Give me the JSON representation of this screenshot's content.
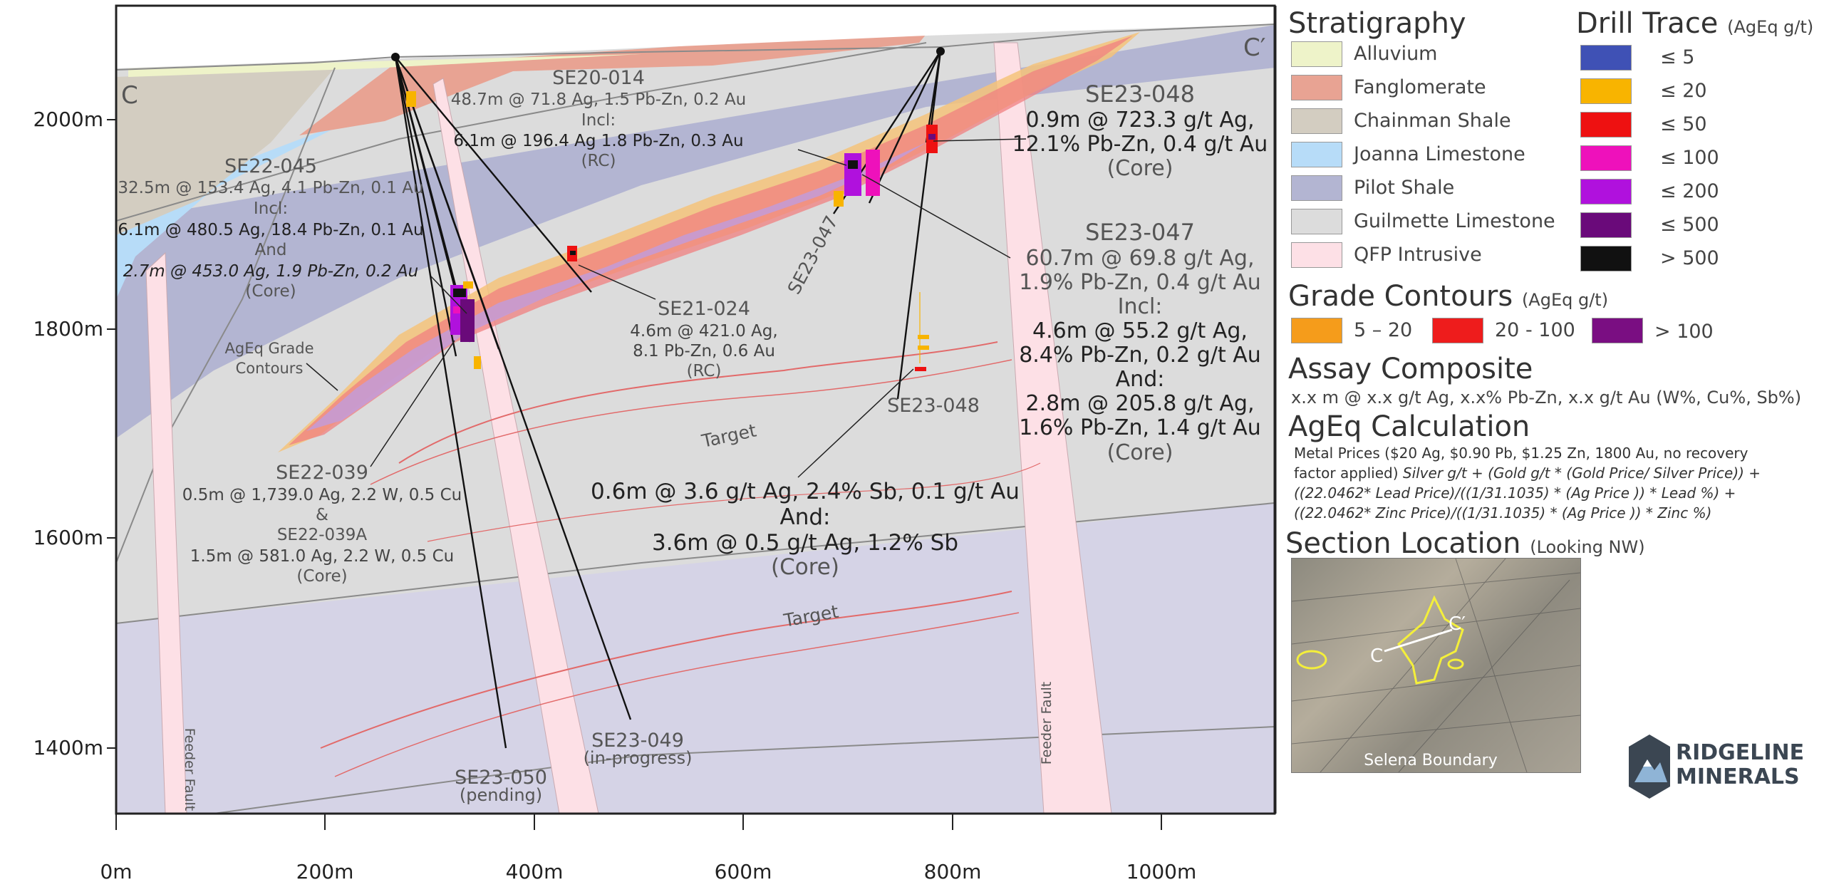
{
  "section": {
    "left_end": "C",
    "right_end": "C′"
  },
  "axes": {
    "y_ticks": [
      "2000m",
      "1800m",
      "1600m",
      "1400m"
    ],
    "x_ticks": [
      "0m",
      "200m",
      "400m",
      "600m",
      "800m",
      "1000m"
    ]
  },
  "holes": {
    "se20_014": {
      "name": "SE20-014",
      "l1": "48.7m @ 71.8 Ag, 1.5 Pb-Zn, 0.2 Au",
      "l2": "Incl:",
      "l3": "6.1m @ 196.4 Ag 1.8 Pb-Zn, 0.3 Au",
      "l4": "(RC)"
    },
    "se22_045": {
      "name": "SE22-045",
      "l1": "32.5m @ 153.4 Ag, 4.1 Pb-Zn, 0.1 Au",
      "l2": "Incl:",
      "l3": "6.1m @ 480.5 Ag, 18.4 Pb-Zn, 0.1 Au",
      "l4": "And",
      "l5": "2.7m @ 453.0 Ag, 1.9 Pb-Zn, 0.2 Au",
      "l6": "(Core)"
    },
    "se21_024": {
      "name": "SE21-024",
      "l1": "4.6m @ 421.0 Ag,",
      "l2": "8.1 Pb-Zn, 0.6 Au",
      "l3": "(RC)"
    },
    "se22_039": {
      "name": "SE22-039",
      "l1": "0.5m @ 1,739.0 Ag, 2.2 W, 0.5 Cu",
      "l2": "&",
      "l3": "SE22-039A",
      "l4": "1.5m @ 581.0 Ag, 2.2 W, 0.5 Cu",
      "l5": "(Core)"
    },
    "se23_048_top": {
      "name": "SE23-048",
      "l1": "0.9m @ 723.3 g/t Ag,",
      "l2": "12.1% Pb-Zn, 0.4 g/t Au",
      "l3": "(Core)"
    },
    "se23_047": {
      "name": "SE23-047",
      "trace_label": "SE23-047",
      "l1": "60.7m @ 69.8 g/t Ag,",
      "l2": "1.9% Pb-Zn, 0.4 g/t Au",
      "l3": "Incl:",
      "l4": "4.6m @ 55.2 g/t Ag,",
      "l5": "8.4% Pb-Zn, 0.2 g/t Au",
      "l6": "And:",
      "l7": "2.8m @ 205.8 g/t Ag,",
      "l8": "1.6% Pb-Zn, 1.4 g/t Au",
      "l9": "(Core)"
    },
    "se23_048_low": {
      "name": "SE23-048",
      "l1": "0.6m @ 3.6 g/t Ag, 2.4% Sb, 0.1 g/t Au",
      "l2": "And:",
      "l3": "3.6m @ 0.5 g/t Ag, 1.2% Sb",
      "l4": "(Core)"
    },
    "se23_049": {
      "name": "SE23-049",
      "status": "(in-progress)"
    },
    "se23_050": {
      "name": "SE23-050",
      "status": "(pending)"
    }
  },
  "annotations": {
    "contours_l1": "AgEq Grade",
    "contours_l2": "Contours",
    "target": "Target",
    "feeder_fault": "Feeder Fault"
  },
  "legend": {
    "stratigraphy_title": "Stratigraphy",
    "stratigraphy": [
      {
        "label": "Alluvium",
        "color": "#eef3c9"
      },
      {
        "label": "Fanglomerate",
        "color": "#e8a393"
      },
      {
        "label": "Chainman Shale",
        "color": "#d3cdc1"
      },
      {
        "label": "Joanna Limestone",
        "color": "#b7dcf8"
      },
      {
        "label": "Pilot Shale",
        "color": "#b3b5d2"
      },
      {
        "label": "Guilmette Limestone",
        "color": "#dcdcdc"
      },
      {
        "label": "QFP Intrusive",
        "color": "#fde0e6"
      }
    ],
    "drill_title": "Drill Trace",
    "drill_unit": "(AgEq g/t)",
    "drill": [
      {
        "label": "≤ 5",
        "color": "#3f51b5"
      },
      {
        "label": "≤ 20",
        "color": "#f8b400"
      },
      {
        "label": "≤ 50",
        "color": "#ee1111"
      },
      {
        "label": "≤ 100",
        "color": "#ee11bb"
      },
      {
        "label": "≤ 200",
        "color": "#b011dd"
      },
      {
        "label": "≤ 500",
        "color": "#6a0a7a"
      },
      {
        "label": "> 500",
        "color": "#111111"
      }
    ],
    "contour_title": "Grade Contours",
    "contour_unit": "(AgEq g/t)",
    "contours": [
      {
        "label": "5 – 20",
        "color": "#f59c1b"
      },
      {
        "label": "20 - 100",
        "color": "#ee1c1c"
      },
      {
        "label": "> 100",
        "color": "#7a0e82"
      }
    ],
    "assay_title": "Assay Composite",
    "assay_text": "x.x m @ x.x g/t Ag, x.x% Pb-Zn, x.x g/t Au (W%, Cu%, Sb%)",
    "ageq_title": "AgEq Calculation",
    "ageq_l1": "Metal Prices ($20 Ag, $0.90 Pb, $1.25 Zn, 1800 Au, no recovery",
    "ageq_l2a": "factor applied) ",
    "ageq_l2b": "Silver g/t + (Gold g/t * (Gold Price/ Silver Price)) +",
    "ageq_l3": "((22.0462* Lead Price)/((1/31.1035) * (Ag Price )) * Lead %) +",
    "ageq_l4": "((22.0462* Zinc Price)/((1/31.1035) * (Ag Price )) * Zinc %)",
    "location_title": "Section Location",
    "location_note": "(Looking NW)",
    "map_c": "C",
    "map_c2": "C′",
    "map_caption": "Selena Boundary",
    "logo_l1": "RIDGELINE",
    "logo_l2": "MINERALS"
  }
}
